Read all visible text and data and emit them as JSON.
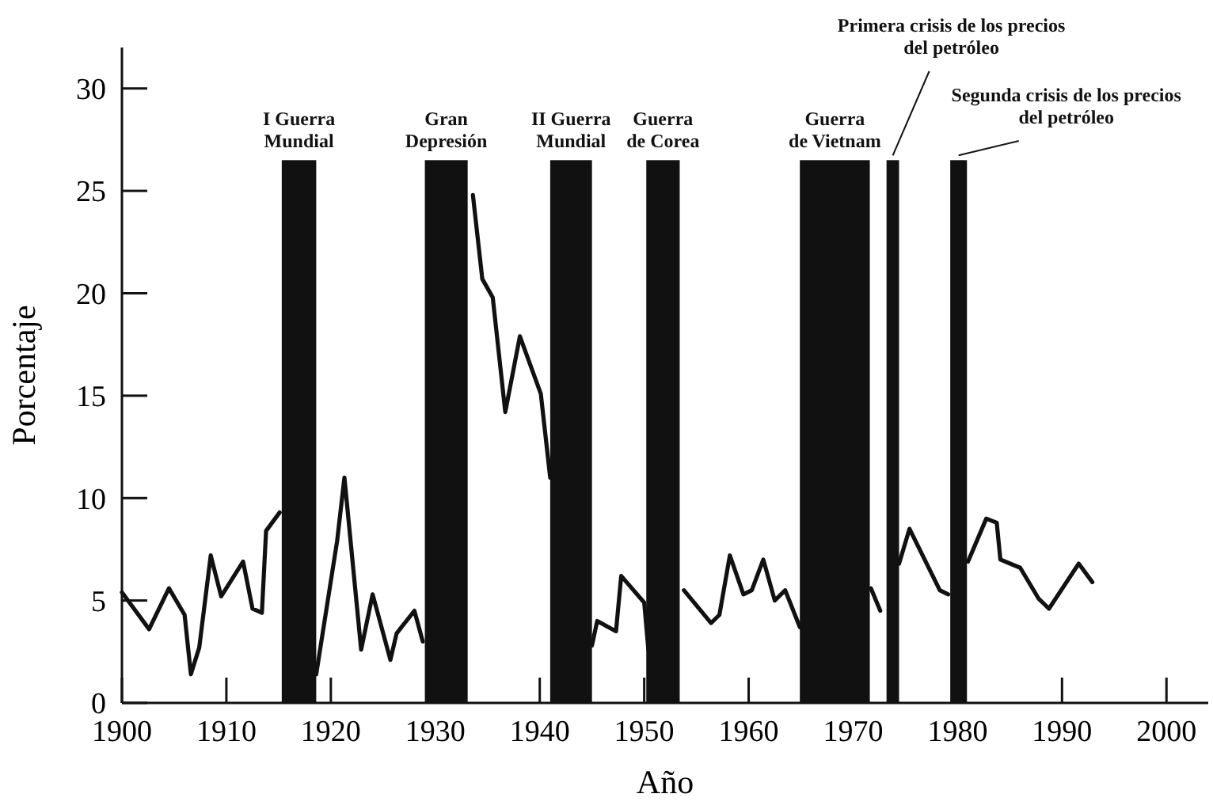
{
  "chart_data": {
    "type": "line",
    "xlabel": "Año",
    "ylabel": "Porcentaje",
    "xlim": [
      1900,
      2004
    ],
    "xticks": [
      1900,
      1910,
      1920,
      1930,
      1940,
      1950,
      1960,
      1970,
      1980,
      1990,
      2000
    ],
    "ylim": [
      0,
      32
    ],
    "yticks": [
      0,
      5,
      10,
      15,
      20,
      25,
      30
    ],
    "grid": false,
    "marker": "none",
    "line_style": "solid",
    "series": [
      {
        "color": "#111111",
        "x": [
          1900,
          1902.6,
          1904.5,
          1906,
          1906.6,
          1907.4,
          1908.5,
          1909.5,
          1911.6,
          1912.5,
          1913.4,
          1913.8,
          1915.1,
          1917,
          1918.6,
          1920.6,
          1921.3,
          1922.9,
          1924,
          1925.7,
          1926.3,
          1928,
          1928.8,
          1931,
          1933.6,
          1934.5,
          1935.5,
          1936.7,
          1938.1,
          1940.1,
          1941,
          1943,
          1945,
          1945.5,
          1947.3,
          1947.8,
          1950,
          1950.4,
          1952,
          1953.8,
          1956.4,
          1957.2,
          1958.2,
          1959.5,
          1960.3,
          1961.4,
          1962.5,
          1963.5,
          1964.9,
          1968,
          1971.7,
          1972.6,
          1973.5,
          1974.4,
          1975.4,
          1978.3,
          1979.1,
          1980,
          1981,
          1982.75,
          1983.75,
          1984.1,
          1986,
          1987.75,
          1988.75,
          1991.6,
          1992.9
        ],
        "values": [
          5.4,
          3.6,
          5.6,
          4.3,
          1.4,
          2.7,
          7.2,
          5.2,
          6.9,
          4.6,
          4.4,
          8.4,
          9.3,
          null,
          1.4,
          7.9,
          11.0,
          2.6,
          5.3,
          2.1,
          3.4,
          4.5,
          3.0,
          null,
          24.8,
          20.7,
          19.8,
          14.2,
          17.9,
          15.1,
          11.0,
          null,
          2.8,
          4.0,
          3.5,
          6.2,
          4.9,
          2.6,
          null,
          5.5,
          3.9,
          4.3,
          7.2,
          5.3,
          5.5,
          7.0,
          5.0,
          5.5,
          3.7,
          null,
          5.6,
          4.5,
          null,
          6.8,
          8.5,
          5.5,
          5.3,
          null,
          6.9,
          9.0,
          8.8,
          7.0,
          6.6,
          5.1,
          4.6,
          6.8,
          5.9
        ]
      }
    ],
    "bands": [
      {
        "axis": "x",
        "from": 1915.3,
        "to": 1918.6,
        "label": "I Guerra\nMundial",
        "color": "#111111"
      },
      {
        "axis": "x",
        "from": 1929,
        "to": 1933.1,
        "label": "Gran\nDepresión",
        "color": "#111111"
      },
      {
        "axis": "x",
        "from": 1941,
        "to": 1945,
        "label": "II Guerra\nMundial",
        "color": "#111111"
      },
      {
        "axis": "x",
        "from": 1950.2,
        "to": 1953.4,
        "label": "Guerra\nde Corea",
        "color": "#111111"
      },
      {
        "axis": "x",
        "from": 1964.9,
        "to": 1971.6,
        "label": "Guerra\nde Vietnam",
        "color": "#111111"
      },
      {
        "axis": "x",
        "from": 1973.2,
        "to": 1974.4,
        "label": "Primera crisis de los precios\ndel petróleo",
        "color": "#111111"
      },
      {
        "axis": "x",
        "from": 1979.3,
        "to": 1980.9,
        "label": "Segunda crisis de los precios\ndel petróleo",
        "color": "#111111"
      }
    ]
  }
}
